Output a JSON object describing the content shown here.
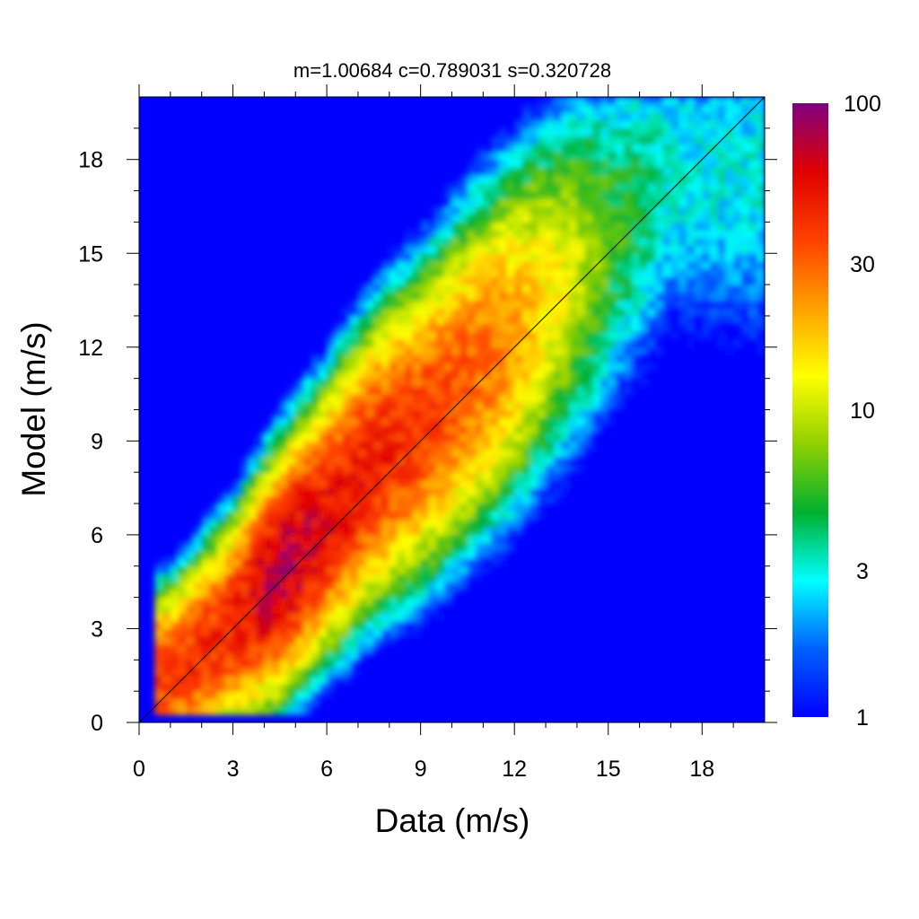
{
  "chart_data": {
    "type": "heatmap",
    "title": "m=1.00684 c=0.789031 s=0.320728",
    "xlabel": "Data (m/s)",
    "ylabel": "Model (m/s)",
    "xlim": [
      0,
      20
    ],
    "ylim": [
      0,
      20
    ],
    "xticks": [
      "0",
      "3",
      "6",
      "9",
      "12",
      "15",
      "18"
    ],
    "yticks": [
      "0",
      "3",
      "6",
      "9",
      "12",
      "15",
      "18"
    ],
    "background_color": "#0000ff",
    "colorscale": {
      "scale": "log",
      "range": [
        1,
        100
      ],
      "ticks": [
        "1",
        "3",
        "10",
        "30",
        "100"
      ],
      "colors": [
        "#0000ff",
        "#0060ff",
        "#00ffff",
        "#00b030",
        "#90d000",
        "#ffff00",
        "#ffa000",
        "#ff4000",
        "#e00000",
        "#800080"
      ]
    },
    "reference_line": {
      "type": "one-to-one",
      "from": [
        0,
        0
      ],
      "to": [
        20,
        20
      ],
      "color": "#000000"
    },
    "density_ridge": [
      {
        "x": 1,
        "y": 1.5,
        "count": 40
      },
      {
        "x": 3,
        "y": 3.2,
        "count": 45
      },
      {
        "x": 4.5,
        "y": 4.8,
        "count": 80
      },
      {
        "x": 6,
        "y": 6.5,
        "count": 55
      },
      {
        "x": 7.5,
        "y": 8.3,
        "count": 50
      },
      {
        "x": 9,
        "y": 9.5,
        "count": 40
      },
      {
        "x": 11,
        "y": 11.5,
        "count": 30
      },
      {
        "x": 13,
        "y": 13.5,
        "count": 15
      },
      {
        "x": 15,
        "y": 15.5,
        "count": 6
      },
      {
        "x": 17,
        "y": 17.5,
        "count": 3
      }
    ]
  }
}
